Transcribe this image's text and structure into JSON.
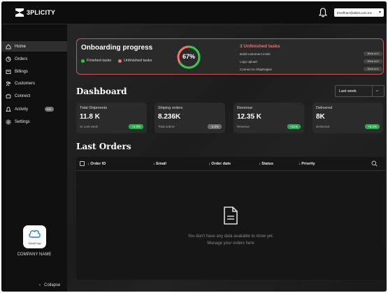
{
  "app": {
    "logo_text": "3PLICITY",
    "user_email": "tmorfinez@abiet.com.mx"
  },
  "sidebar": {
    "items": [
      {
        "label": "Home",
        "icon": "home-icon"
      },
      {
        "label": "Orders",
        "icon": "orders-icon"
      },
      {
        "label": "Billings",
        "icon": "billings-icon"
      },
      {
        "label": "Customers",
        "icon": "customers-icon"
      },
      {
        "label": "Connect",
        "icon": "connect-icon"
      },
      {
        "label": "Activity",
        "icon": "bell-icon",
        "badge": "99+"
      },
      {
        "label": "Settings",
        "icon": "gear-icon"
      }
    ],
    "upload_label": "Upload logo",
    "company_name": "COMPANY NAME",
    "collapse_label": "Collapse"
  },
  "onboarding": {
    "title": "Onboarding progress",
    "finished_label": "Finished tasks",
    "unfinished_label": "Unfinished tasks",
    "progress_text": "67%",
    "progress": 0.67,
    "unfinished_title": "3 Unfinished tasks",
    "tasks": [
      {
        "label": "Build customers invite",
        "action": "Work on it"
      },
      {
        "label": "Logo upload",
        "action": "Work on it"
      },
      {
        "label": "Connect to ShipEngine",
        "action": "Work on it"
      }
    ],
    "colors": {
      "finished": "#2ecc40",
      "unfinished": "#ff7070",
      "border": "#c55555"
    }
  },
  "dashboard": {
    "title": "Dashboard",
    "range": "Last week",
    "stats": [
      {
        "label": "Total Shipments",
        "value": "11.8 K",
        "sub": "vs Last week",
        "chip": "+2.3%",
        "chip_color": "#2fa84f"
      },
      {
        "label": "Shiping orders",
        "value": "8.236K",
        "sub": "Total orders",
        "chip": "-1.2%",
        "chip_color": "#6d6d6d"
      },
      {
        "label": "Revenue",
        "value": "12.35 K",
        "sub": "Revenue",
        "chip": "+11%",
        "chip_color": "#2fa84f"
      },
      {
        "label": "Delivered",
        "value": "8K",
        "sub": "Delivered",
        "chip": "+6.2%",
        "chip_color": "#2fa84f"
      }
    ]
  },
  "orders": {
    "title": "Last Orders",
    "columns": [
      "Order ID",
      "Email",
      "Order date",
      "Status",
      "Priority"
    ],
    "empty_line1": "You don't have any data available to show yet.",
    "empty_line2": "Manage your orders here"
  }
}
